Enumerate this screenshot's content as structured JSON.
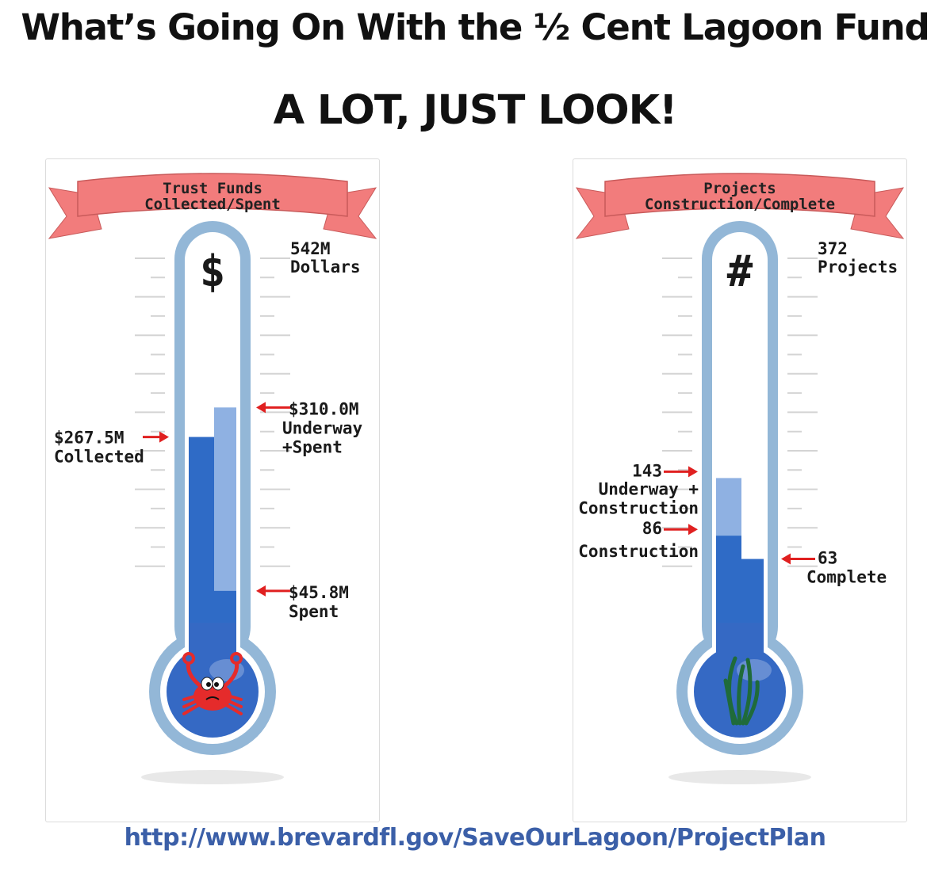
{
  "header": {
    "title": "What’s Going On With the ½ Cent Lagoon Fund",
    "subtitle": "A LOT, JUST LOOK!"
  },
  "chart_data": [
    {
      "type": "bar",
      "title_lines": [
        "Trust Funds",
        "Collected/Spent"
      ],
      "symbol": "$",
      "max": 542,
      "max_lines": [
        "542M",
        "Dollars"
      ],
      "series": [
        {
          "value": 267.5,
          "label_lines": [
            "$267.5M",
            "Collected"
          ],
          "color": "#2f6bc6"
        },
        {
          "value": 310.0,
          "label_lines": [
            "$310.0M",
            "Underway",
            "+Spent"
          ],
          "color": "#8fb1e2"
        },
        {
          "value": 45.8,
          "label_lines": [
            "$45.8M",
            "Spent"
          ],
          "color": "#2f6bc6"
        }
      ],
      "bulb_icon": "crab-icon"
    },
    {
      "type": "bar",
      "title_lines": [
        "Projects",
        "Construction/Complete"
      ],
      "symbol": "#",
      "max": 372,
      "max_lines": [
        "372",
        "Projects"
      ],
      "series": [
        {
          "value": 143,
          "label_lines": [
            "143",
            "Underway +",
            "Construction"
          ],
          "color": "#8fb1e2"
        },
        {
          "value": 86,
          "label_lines": [
            "86",
            "Construction"
          ],
          "color": "#2f6bc6"
        },
        {
          "value": 63,
          "label_lines": [
            "63",
            "Complete"
          ],
          "color": "#2f6bc6"
        }
      ],
      "bulb_icon": "seagrass-icon"
    }
  ],
  "footer": {
    "url": "http://www.brevardfl.gov/SaveOurLagoon/ProjectPlan"
  },
  "colors": {
    "banner": "#f27c7c",
    "arrow": "#e02020",
    "tube_outline": "#93b7d7",
    "dark_fill": "#2f6bc6",
    "light_fill": "#8fb1e2",
    "link": "#3b5fa8"
  }
}
